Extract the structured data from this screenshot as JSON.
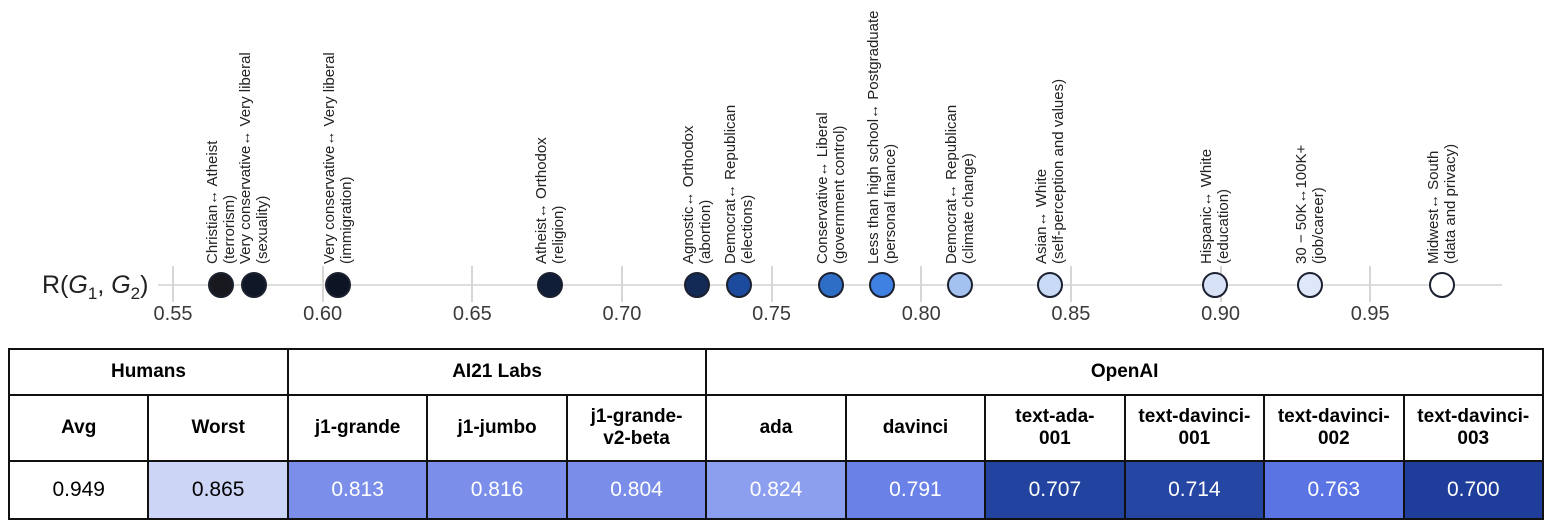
{
  "chart_data": {
    "type": "scatter",
    "axis_label_parts": {
      "p0": "R(",
      "g1": "G",
      "s1": "1",
      "comma": ", ",
      "g2": "G",
      "s2": "2",
      "p1": ")"
    },
    "xlim": [
      0.545,
      0.998
    ],
    "tick_values": [
      0.55,
      0.6,
      0.65,
      0.7,
      0.75,
      0.8,
      0.85,
      0.9,
      0.95
    ],
    "tick_labels": [
      "0.55",
      "0.60",
      "0.65",
      "0.70",
      "0.75",
      "0.80",
      "0.85",
      "0.90",
      "0.95"
    ],
    "grid": "vertical-ticks-only",
    "legend": "none",
    "dot_outline_color": "#1c2130",
    "points": [
      {
        "group_pair": "Christian↔ Atheist",
        "topic": "(terrorism)",
        "value": 0.566,
        "fill": "#17191f"
      },
      {
        "group_pair": "Very conservative↔ Very liberal",
        "topic": "(sexuality)",
        "value": 0.577,
        "fill": "#101726"
      },
      {
        "group_pair": "Very conservative↔ Very liberal",
        "topic": "(immigration)",
        "value": 0.605,
        "fill": "#0d1525"
      },
      {
        "group_pair": "Atheist↔ Orthodox",
        "topic": "(religion)",
        "value": 0.676,
        "fill": "#101e38"
      },
      {
        "group_pair": "Agnostic↔ Orthodox",
        "topic": "(abortion)",
        "value": 0.725,
        "fill": "#122a55"
      },
      {
        "group_pair": "Democrat↔ Republican",
        "topic": "(elections)",
        "value": 0.739,
        "fill": "#1c4a9c"
      },
      {
        "group_pair": "Conservative↔ Liberal",
        "topic": "(government control)",
        "value": 0.77,
        "fill": "#2f6ec6"
      },
      {
        "group_pair": "Less than high school↔ Postgraduate",
        "topic": "(personal finance)",
        "value": 0.787,
        "fill": "#3f81e3"
      },
      {
        "group_pair": "Democrat↔ Republican",
        "topic": "(climate change)",
        "value": 0.813,
        "fill": "#a3c2ef"
      },
      {
        "group_pair": "Asian↔ White",
        "topic": "(self-perception and values)",
        "value": 0.843,
        "fill": "#c8daf5"
      },
      {
        "group_pair": "Hispanic↔ White",
        "topic": "(education)",
        "value": 0.898,
        "fill": "#d8e2f7"
      },
      {
        "group_pair": "30 − 50K↔100K+",
        "topic": "(job/career)",
        "value": 0.93,
        "fill": "#dfe8fa"
      },
      {
        "group_pair": "Midwest↔ South",
        "topic": "(data and privacy)",
        "value": 0.974,
        "fill": "#ffffff"
      }
    ]
  },
  "table": {
    "groups": [
      {
        "label": "Humans",
        "colspan": 2
      },
      {
        "label": "AI21 Labs",
        "colspan": 3
      },
      {
        "label": "OpenAI",
        "colspan": 6
      }
    ],
    "columns": [
      {
        "header": "Avg",
        "value": "0.949",
        "bg": "#ffffff",
        "fg": "#000000"
      },
      {
        "header": "Worst",
        "value": "0.865",
        "bg": "#ccd5f6",
        "fg": "#000000"
      },
      {
        "header": "j1-grande",
        "value": "0.813",
        "bg": "#7b8eea",
        "fg": "#ffffff"
      },
      {
        "header": "j1-jumbo",
        "value": "0.816",
        "bg": "#7b8eea",
        "fg": "#ffffff"
      },
      {
        "header": "j1-grande-\nv2-beta",
        "value": "0.804",
        "bg": "#7a8de9",
        "fg": "#ffffff"
      },
      {
        "header": "ada",
        "value": "0.824",
        "bg": "#8c9eee",
        "fg": "#ffffff"
      },
      {
        "header": "davinci",
        "value": "0.791",
        "bg": "#6a82e7",
        "fg": "#ffffff"
      },
      {
        "header": "text-ada-\n001",
        "value": "0.707",
        "bg": "#2343a0",
        "fg": "#ffffff"
      },
      {
        "header": "text-davinci-\n001",
        "value": "0.714",
        "bg": "#2646a3",
        "fg": "#ffffff"
      },
      {
        "header": "text-davinci-\n002",
        "value": "0.763",
        "bg": "#5a74e4",
        "fg": "#ffffff"
      },
      {
        "header": "text-davinci-\n003",
        "value": "0.700",
        "bg": "#1f3e9b",
        "fg": "#ffffff"
      }
    ]
  }
}
